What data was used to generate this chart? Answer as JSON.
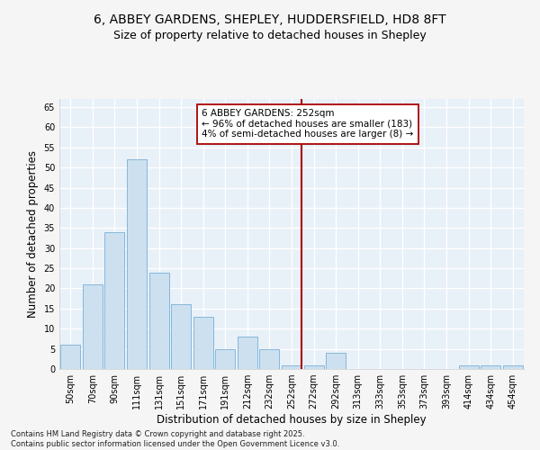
{
  "title1": "6, ABBEY GARDENS, SHEPLEY, HUDDERSFIELD, HD8 8FT",
  "title2": "Size of property relative to detached houses in Shepley",
  "xlabel": "Distribution of detached houses by size in Shepley",
  "ylabel": "Number of detached properties",
  "categories": [
    "50sqm",
    "70sqm",
    "90sqm",
    "111sqm",
    "131sqm",
    "151sqm",
    "171sqm",
    "191sqm",
    "212sqm",
    "232sqm",
    "252sqm",
    "272sqm",
    "292sqm",
    "313sqm",
    "333sqm",
    "353sqm",
    "373sqm",
    "393sqm",
    "414sqm",
    "434sqm",
    "454sqm"
  ],
  "values": [
    6,
    21,
    34,
    52,
    24,
    16,
    13,
    5,
    8,
    5,
    1,
    1,
    4,
    0,
    0,
    0,
    0,
    0,
    1,
    1,
    1
  ],
  "bar_color": "#cce0f0",
  "bar_edge_color": "#7aafd4",
  "vline_x_index": 10,
  "vline_color": "#aa0000",
  "annotation_text": "6 ABBEY GARDENS: 252sqm\n← 96% of detached houses are smaller (183)\n4% of semi-detached houses are larger (8) →",
  "annotation_box_color": "#ffffff",
  "annotation_edge_color": "#aa0000",
  "ylim": [
    0,
    67
  ],
  "yticks": [
    0,
    5,
    10,
    15,
    20,
    25,
    30,
    35,
    40,
    45,
    50,
    55,
    60,
    65
  ],
  "bg_color": "#e8f0f8",
  "grid_color": "#ffffff",
  "fig_bg_color": "#f5f5f5",
  "footnote": "Contains HM Land Registry data © Crown copyright and database right 2025.\nContains public sector information licensed under the Open Government Licence v3.0.",
  "title_fontsize": 10,
  "subtitle_fontsize": 9,
  "axis_label_fontsize": 8.5,
  "tick_fontsize": 7,
  "annot_fontsize": 7.5,
  "footnote_fontsize": 6
}
